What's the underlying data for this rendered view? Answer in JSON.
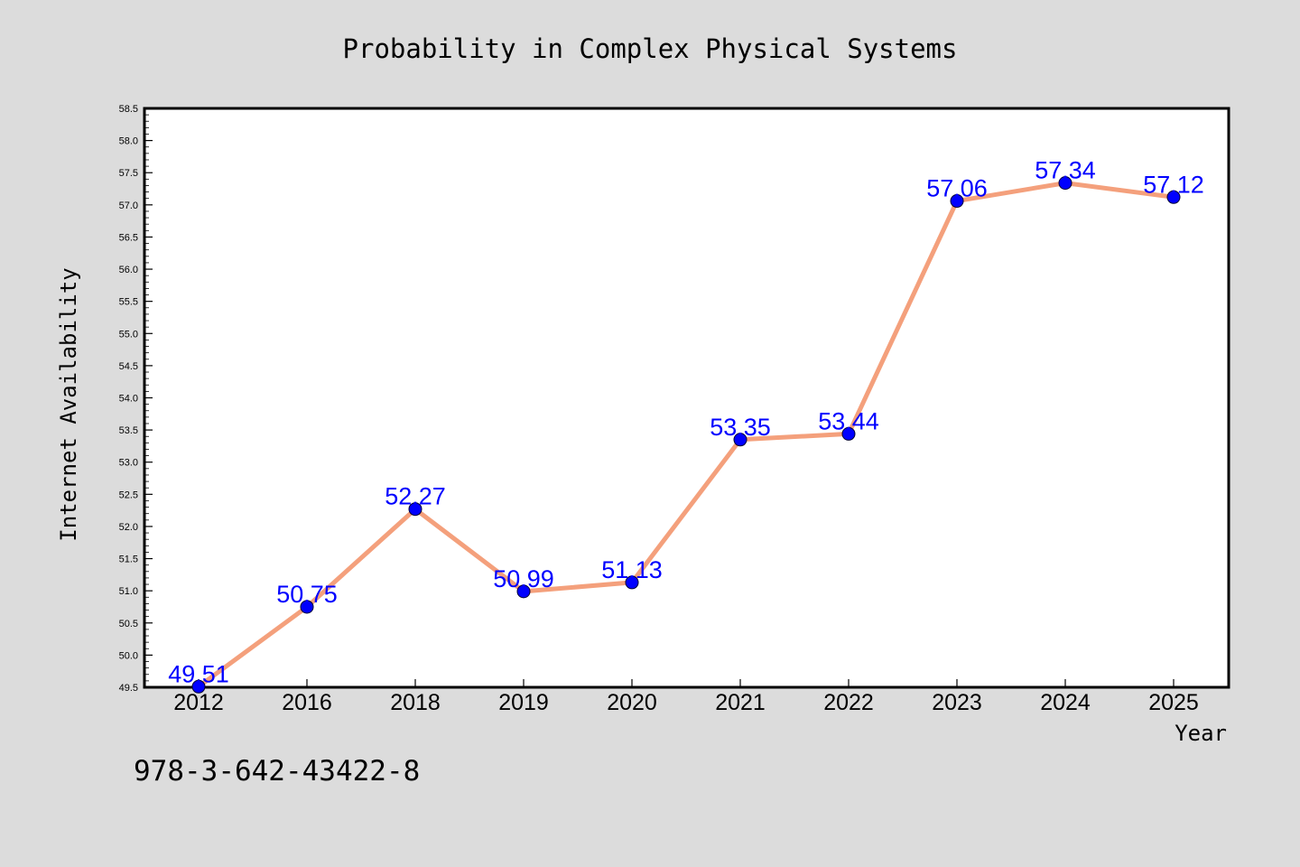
{
  "chart_data": {
    "type": "line",
    "title": "Probability in Complex Physical Systems",
    "xlabel": "Year",
    "ylabel": "Internet Availability",
    "categories": [
      "2012",
      "2016",
      "2018",
      "2019",
      "2020",
      "2021",
      "2022",
      "2023",
      "2024",
      "2025"
    ],
    "series": [
      {
        "values": [
          49.51,
          50.75,
          52.27,
          50.99,
          51.13,
          53.35,
          53.44,
          57.06,
          57.34,
          57.12
        ]
      }
    ],
    "data_labels": [
      "49.51",
      "50.75",
      "52.27",
      "50.99",
      "51.13",
      "53.35",
      "53.44",
      "57.06",
      "57.34",
      "57.12"
    ],
    "ylim": [
      49.5,
      58.5
    ],
    "yticks": [
      "49.5",
      "50.0",
      "50.5",
      "51.0",
      "51.5",
      "52.0",
      "52.5",
      "53.0",
      "53.5",
      "54.0",
      "54.5",
      "55.0",
      "55.5",
      "56.0",
      "56.5",
      "57.0",
      "57.5",
      "58.0",
      "58.5"
    ],
    "grid": false,
    "line_color": "#f4a07c",
    "marker_color": "#0000ff",
    "label_color": "#0000ff"
  },
  "annotation": {
    "isbn": "978-3-642-43422-8"
  }
}
